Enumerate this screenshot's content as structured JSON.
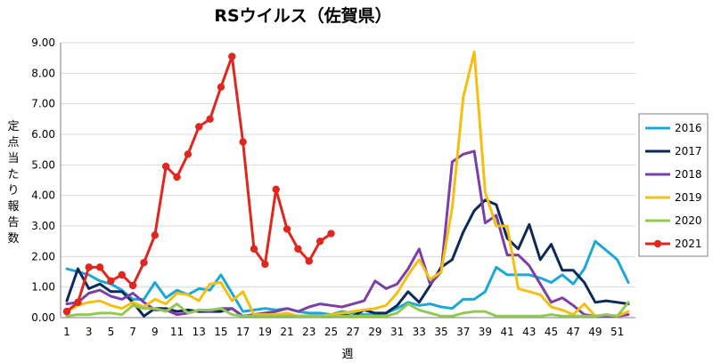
{
  "chart_data": {
    "type": "line",
    "title": "RSウイルス（佐賀県）",
    "xlabel": "週",
    "ylabel": "定点当たり報告数",
    "ylim": [
      0,
      9
    ],
    "yticks": [
      "0.00",
      "1.00",
      "2.00",
      "3.00",
      "4.00",
      "5.00",
      "6.00",
      "7.00",
      "8.00",
      "9.00"
    ],
    "xlim": [
      1,
      52
    ],
    "xticks": [
      "1",
      "3",
      "5",
      "7",
      "9",
      "11",
      "13",
      "15",
      "17",
      "19",
      "21",
      "23",
      "25",
      "27",
      "29",
      "31",
      "33",
      "35",
      "37",
      "39",
      "41",
      "43",
      "45",
      "47",
      "49",
      "51"
    ],
    "grid": "horizontal",
    "legend_position": "right",
    "series": [
      {
        "name": "2016",
        "color": "#1ba8d8",
        "markers": false,
        "values": [
          1.6,
          1.5,
          1.4,
          1.2,
          1.1,
          0.9,
          0.6,
          0.6,
          1.15,
          0.65,
          0.9,
          0.75,
          0.95,
          0.9,
          1.4,
          0.8,
          0.2,
          0.25,
          0.3,
          0.25,
          0.3,
          0.2,
          0.15,
          0.15,
          0.1,
          0.2,
          0.15,
          0.1,
          0.1,
          0.15,
          0.3,
          0.5,
          0.4,
          0.45,
          0.35,
          0.3,
          0.6,
          0.6,
          0.85,
          1.65,
          1.4,
          1.4,
          1.4,
          1.3,
          1.15,
          1.4,
          1.1,
          1.6,
          2.5,
          2.2,
          1.9,
          1.15
        ]
      },
      {
        "name": "2017",
        "color": "#0d2a57",
        "markers": false,
        "values": [
          0.55,
          1.6,
          0.95,
          1.1,
          0.85,
          0.85,
          0.5,
          0.05,
          0.3,
          0.3,
          0.2,
          0.25,
          0.2,
          0.2,
          0.2,
          0.3,
          0.05,
          0.05,
          0.05,
          0.05,
          0.05,
          0.05,
          0.05,
          0.05,
          0.05,
          0.1,
          0.05,
          0.25,
          0.15,
          0.15,
          0.4,
          0.85,
          0.5,
          1.05,
          1.65,
          1.9,
          2.8,
          3.5,
          3.85,
          3.7,
          2.6,
          2.25,
          3.05,
          1.9,
          2.4,
          1.55,
          1.55,
          1.15,
          0.5,
          0.55,
          0.5,
          0.45
        ]
      },
      {
        "name": "2018",
        "color": "#7b3fa6",
        "markers": false,
        "values": [
          0.45,
          0.5,
          0.8,
          0.9,
          0.7,
          0.6,
          0.8,
          0.5,
          0.25,
          0.25,
          0.1,
          0.15,
          0.25,
          0.2,
          0.3,
          0.3,
          0.05,
          0.1,
          0.15,
          0.2,
          0.3,
          0.2,
          0.35,
          0.45,
          0.4,
          0.35,
          0.45,
          0.55,
          1.2,
          0.95,
          1.1,
          1.6,
          2.25,
          1.1,
          1.5,
          5.1,
          5.35,
          5.45,
          3.1,
          3.35,
          2.05,
          2.05,
          1.7,
          1.1,
          0.5,
          0.65,
          0.4,
          0.1,
          0.05,
          0.05,
          0.05,
          0.1
        ]
      },
      {
        "name": "2019",
        "color": "#f5be12",
        "markers": false,
        "values": [
          0.2,
          0.4,
          0.5,
          0.55,
          0.4,
          0.3,
          0.5,
          0.35,
          0.6,
          0.45,
          0.8,
          0.75,
          0.55,
          1.1,
          1.15,
          0.55,
          0.85,
          0.1,
          0.1,
          0.1,
          0.15,
          0.05,
          0.05,
          0.05,
          0.1,
          0.15,
          0.2,
          0.25,
          0.3,
          0.4,
          0.8,
          1.4,
          1.9,
          1.25,
          1.5,
          3.6,
          7.2,
          8.7,
          4.1,
          3.0,
          3.0,
          0.95,
          0.85,
          0.75,
          0.35,
          0.25,
          0.1,
          0.45,
          0.05,
          0.1,
          0.05,
          0.2
        ]
      },
      {
        "name": "2020",
        "color": "#92c951",
        "markers": false,
        "values": [
          0.05,
          0.1,
          0.1,
          0.15,
          0.15,
          0.1,
          0.4,
          0.3,
          0.3,
          0.2,
          0.45,
          0.15,
          0.25,
          0.25,
          0.3,
          0.1,
          0.05,
          0.05,
          0.05,
          0.05,
          0.05,
          0.05,
          0.05,
          0.05,
          0.05,
          0.05,
          0.05,
          0.05,
          0.05,
          0.05,
          0.15,
          0.45,
          0.25,
          0.15,
          0.05,
          0.05,
          0.15,
          0.2,
          0.2,
          0.05,
          0.05,
          0.05,
          0.05,
          0.05,
          0.1,
          0.05,
          0.05,
          0.05,
          0.05,
          0.1,
          0.05,
          0.5
        ]
      },
      {
        "name": "2021",
        "color": "#e0261f",
        "markers": true,
        "values": [
          0.2,
          0.5,
          1.65,
          1.65,
          1.2,
          1.4,
          1.05,
          1.8,
          2.7,
          4.95,
          4.6,
          5.35,
          6.25,
          6.5,
          7.55,
          8.55,
          5.75,
          2.25,
          1.75,
          4.2,
          2.9,
          2.25,
          1.85,
          2.5,
          2.75
        ]
      }
    ]
  }
}
